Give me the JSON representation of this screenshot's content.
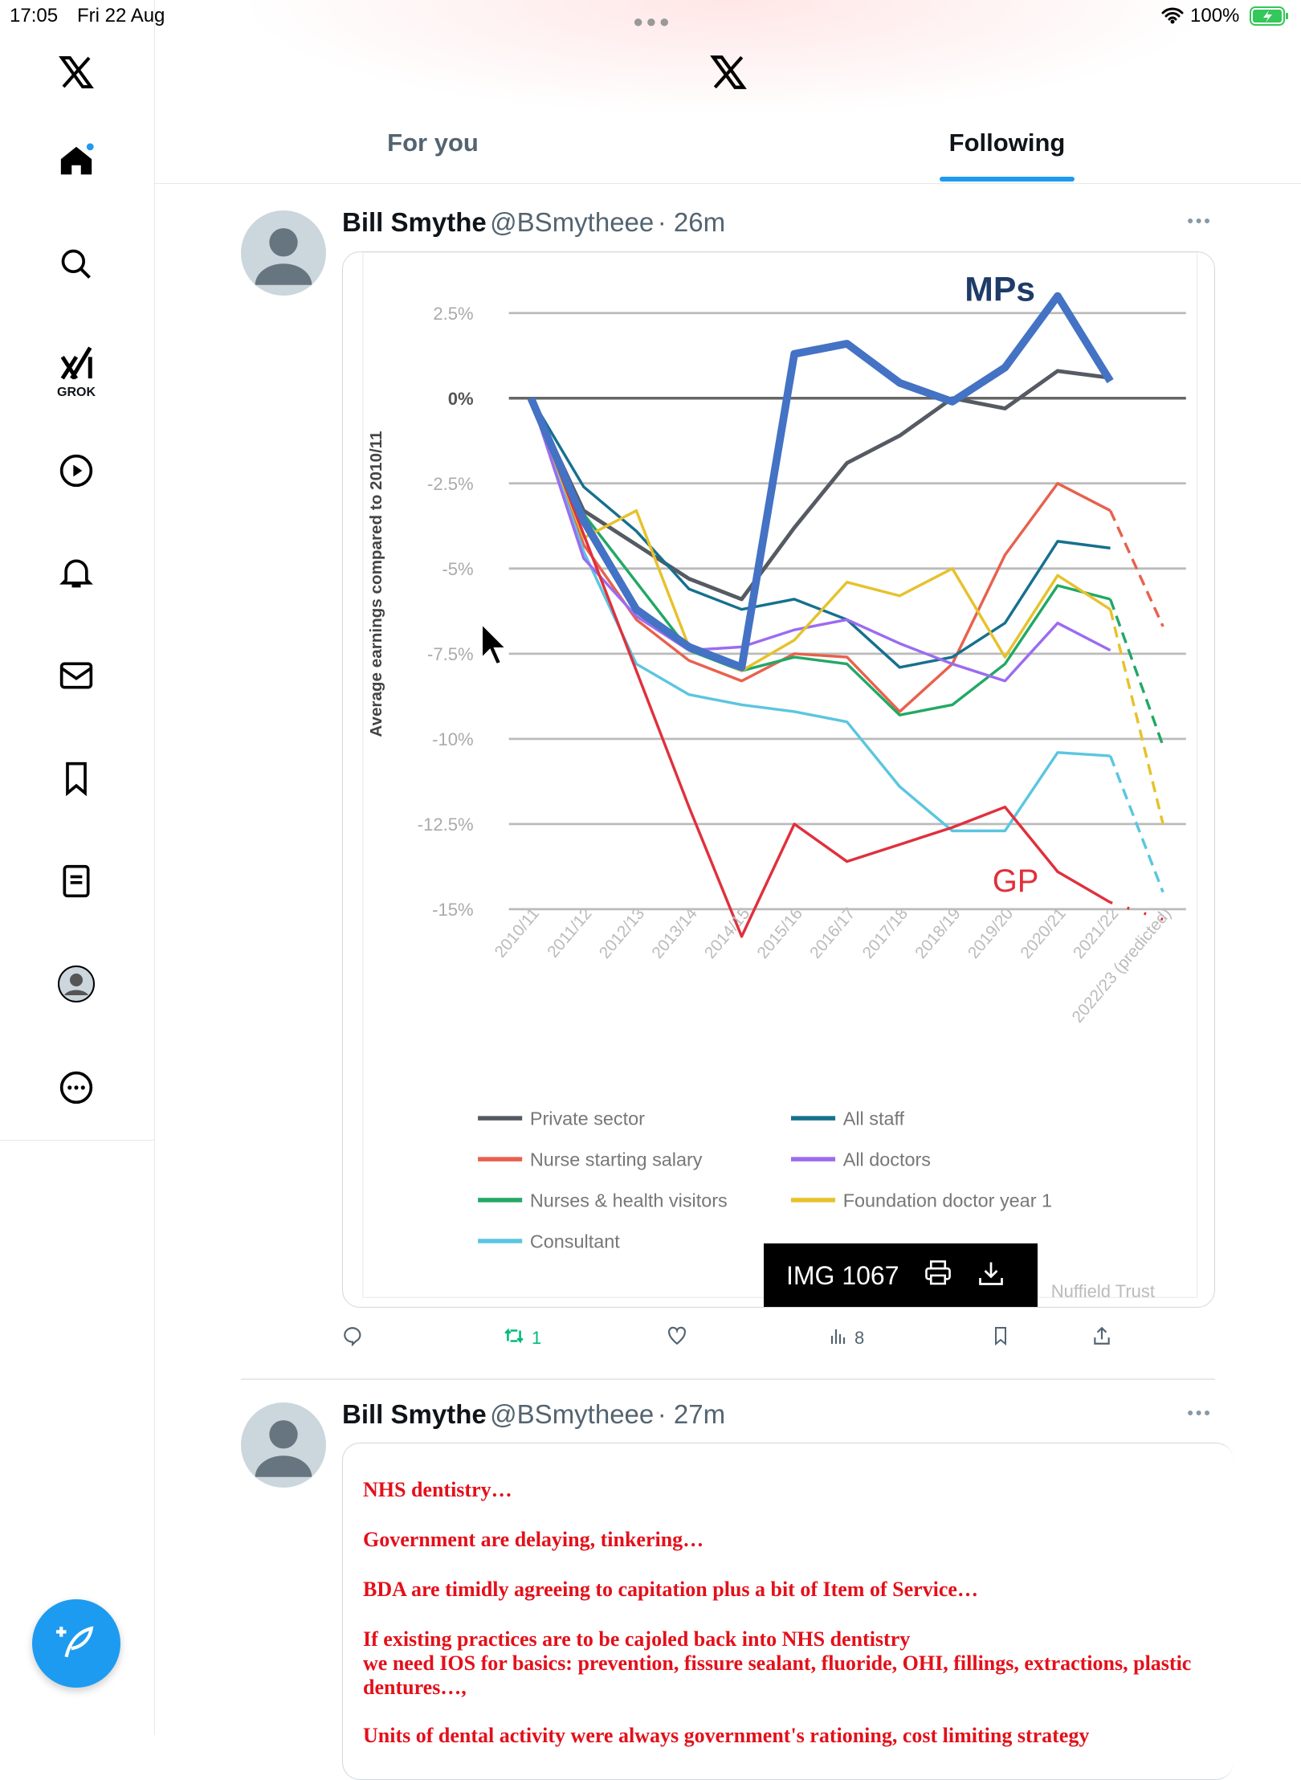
{
  "status_bar": {
    "time": "17:05",
    "date": "Fri 22 Aug",
    "battery": "100%",
    "battery_color": "#34c759"
  },
  "sidebar": {
    "items": [
      "home",
      "search",
      "grok",
      "video",
      "notifications",
      "messages",
      "bookmarks",
      "lists",
      "profile",
      "more"
    ],
    "grok_label": "GROK",
    "accent": "#1d9bf0"
  },
  "header": {
    "tabs": [
      {
        "label": "For you",
        "active": false
      },
      {
        "label": "Following",
        "active": true
      }
    ]
  },
  "tweets": [
    {
      "name": "Bill Smythe",
      "handle": "@BSmytheee",
      "time": "· 26m",
      "image_overlay": {
        "label": "IMG 1067"
      },
      "actions": {
        "reply": "",
        "retweet": "1",
        "like": "",
        "views": "8",
        "retweet_color": "#00ba7c"
      }
    },
    {
      "name": "Bill Smythe",
      "handle": "@BSmytheee",
      "time": "· 27m",
      "lines": [
        "NHS dentistry…",
        "Government are delaying, tinkering…",
        "BDA are timidly agreeing to capitation plus a bit of Item of Service…",
        "If existing practices are to be cajoled back into NHS dentistry",
        "we need IOS for basics: prevention, fissure sealant, fluoride, OHI, fillings, extractions, plastic",
        "dentures…,",
        "Units of dental activity were always government's rationing, cost limiting strategy"
      ]
    }
  ],
  "chart_data": {
    "type": "line",
    "ylabel": "Average earnings compared to 2010/11",
    "categories": [
      "2010/11",
      "2011/12",
      "2012/13",
      "2013/14",
      "2014/15",
      "2015/16",
      "2016/17",
      "2017/18",
      "2018/19",
      "2019/20",
      "2020/21",
      "2021/22",
      "2022/23 (predicted)"
    ],
    "yticks": [
      "2.5%",
      "0%",
      "-2.5%",
      "-5%",
      "-7.5%",
      "-10%",
      "-12.5%",
      "-15%"
    ],
    "ytick_values": [
      2.5,
      0,
      -2.5,
      -5,
      -7.5,
      -10,
      -12.5,
      -15
    ],
    "ylim": [
      -16,
      3.5
    ],
    "annotations": {
      "mps": "MPs",
      "gp": "GP",
      "source": "Nuffield Trust"
    },
    "series": [
      {
        "name": "Private sector",
        "legend": true,
        "color": "#555a63",
        "width": 3.5,
        "values": [
          0,
          -3.3,
          -4.3,
          -5.3,
          -5.9,
          -3.8,
          -1.9,
          -1.1,
          0,
          -0.3,
          0.8,
          0.6,
          null
        ]
      },
      {
        "name": "Nurse starting salary",
        "legend": true,
        "color": "#e8614d",
        "width": 2.5,
        "values": [
          0,
          -4.3,
          -6.5,
          -7.7,
          -8.3,
          -7.5,
          -7.6,
          -9.2,
          -7.8,
          -4.6,
          -2.5,
          -3.3,
          -6.7
        ]
      },
      {
        "name": "Nurses & health visitors",
        "legend": true,
        "color": "#22a865",
        "width": 2.5,
        "values": [
          0,
          -3.4,
          -5.4,
          -7.4,
          -8.0,
          -7.6,
          -7.8,
          -9.3,
          -9.0,
          -7.8,
          -5.5,
          -5.9,
          -10.2
        ]
      },
      {
        "name": "Consultant",
        "legend": true,
        "color": "#5bc6e0",
        "width": 2.5,
        "values": [
          0,
          -4.5,
          -7.8,
          -8.7,
          -9.0,
          -9.2,
          -9.5,
          -11.4,
          -12.7,
          -12.7,
          -10.4,
          -10.5,
          -14.5
        ]
      },
      {
        "name": "All staff",
        "legend": true,
        "color": "#16708f",
        "width": 2.5,
        "values": [
          0,
          -2.6,
          -3.9,
          -5.6,
          -6.2,
          -5.9,
          -6.5,
          -7.9,
          -7.6,
          -6.6,
          -4.2,
          -4.4,
          null
        ]
      },
      {
        "name": "All doctors",
        "legend": true,
        "color": "#9b6cf0",
        "width": 2.5,
        "values": [
          0,
          -4.7,
          -6.4,
          -7.4,
          -7.3,
          -6.8,
          -6.5,
          -7.2,
          -7.8,
          -8.3,
          -6.6,
          -7.4,
          null
        ]
      },
      {
        "name": "Foundation doctor year 1",
        "legend": true,
        "color": "#e6c22c",
        "width": 2.5,
        "values": [
          0,
          -4.1,
          -3.3,
          -7.3,
          -8.0,
          -7.1,
          -5.4,
          -5.8,
          -5.0,
          -7.6,
          -5.2,
          -6.2,
          -12.5
        ]
      },
      {
        "name": "GP",
        "legend": false,
        "color": "#e0303c",
        "width": 2.5,
        "values": [
          0,
          -4,
          -8,
          -12,
          -15.8,
          -12.5,
          -13.6,
          -13.1,
          -12.6,
          -12.0,
          -13.9,
          -14.8,
          -15.3
        ]
      },
      {
        "name": "MPs",
        "legend": false,
        "color": "#4472c4",
        "width": 7,
        "values": [
          0,
          -3.6,
          -6.2,
          -7.3,
          -7.9,
          1.3,
          1.6,
          0.45,
          -0.1,
          0.9,
          3.0,
          0.5,
          null
        ]
      }
    ]
  }
}
